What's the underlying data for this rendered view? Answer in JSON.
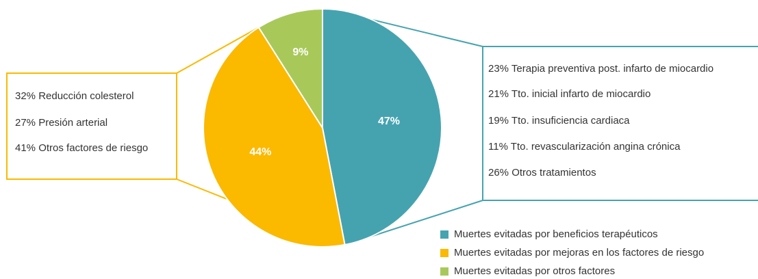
{
  "chart_data": {
    "type": "pie",
    "categories": [
      "Muertes evitadas por beneficios terapéuticos",
      "Muertes evitadas por mejoras en los factores de riesgo",
      "Muertes evitadas por otros factores"
    ],
    "values": [
      47,
      44,
      9
    ],
    "value_labels": [
      "47%",
      "44%",
      "9%"
    ],
    "colors": [
      "#45a3b0",
      "#fbb900",
      "#a8c95a"
    ],
    "breakdowns": [
      [
        "23% Terapia preventiva post. infarto de miocardio",
        "21% Tto. inicial infarto de miocardio",
        "19% Tto. insuficiencia cardiaca",
        "11% Tto. revascularización angina crónica",
        "26% Otros tratamientos"
      ],
      [
        "32% Reducción colesterol",
        "27% Presión arterial",
        "41% Otros factores de riesgo"
      ]
    ]
  }
}
